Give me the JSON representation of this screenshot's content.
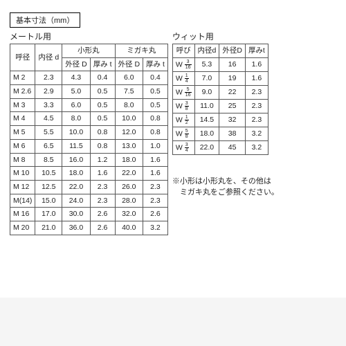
{
  "title": "基本寸法（mm）",
  "left": {
    "section": "メートル用",
    "head": {
      "call": "呼径",
      "id": "内径 d",
      "g1": "小形丸",
      "g2": "ミガキ丸",
      "od": "外径 D",
      "t": "厚み t"
    },
    "rows": [
      {
        "c": "M 2",
        "d": "2.3",
        "d1": "4.3",
        "t1": "0.4",
        "d2": "6.0",
        "t2": "0.4"
      },
      {
        "c": "M 2.6",
        "d": "2.9",
        "d1": "5.0",
        "t1": "0.5",
        "d2": "7.5",
        "t2": "0.5"
      },
      {
        "c": "M 3",
        "d": "3.3",
        "d1": "6.0",
        "t1": "0.5",
        "d2": "8.0",
        "t2": "0.5"
      },
      {
        "c": "M 4",
        "d": "4.5",
        "d1": "8.0",
        "t1": "0.5",
        "d2": "10.0",
        "t2": "0.8"
      },
      {
        "c": "M 5",
        "d": "5.5",
        "d1": "10.0",
        "t1": "0.8",
        "d2": "12.0",
        "t2": "0.8"
      },
      {
        "c": "M 6",
        "d": "6.5",
        "d1": "11.5",
        "t1": "0.8",
        "d2": "13.0",
        "t2": "1.0"
      },
      {
        "c": "M 8",
        "d": "8.5",
        "d1": "16.0",
        "t1": "1.2",
        "d2": "18.0",
        "t2": "1.6"
      },
      {
        "c": "M 10",
        "d": "10.5",
        "d1": "18.0",
        "t1": "1.6",
        "d2": "22.0",
        "t2": "1.6"
      },
      {
        "c": "M 12",
        "d": "12.5",
        "d1": "22.0",
        "t1": "2.3",
        "d2": "26.0",
        "t2": "2.3"
      },
      {
        "c": "M(14)",
        "d": "15.0",
        "d1": "24.0",
        "t1": "2.3",
        "d2": "28.0",
        "t2": "2.3"
      },
      {
        "c": "M 16",
        "d": "17.0",
        "d1": "30.0",
        "t1": "2.6",
        "d2": "32.0",
        "t2": "2.6"
      },
      {
        "c": "M 20",
        "d": "21.0",
        "d1": "36.0",
        "t1": "2.6",
        "d2": "40.0",
        "t2": "3.2"
      }
    ]
  },
  "right": {
    "section": "ウィット用",
    "head": {
      "call": "呼び",
      "id": "内径d",
      "od": "外径D",
      "t": "厚みt"
    },
    "rows": [
      {
        "pre": "W",
        "n": "3",
        "dn": "16",
        "d": "5.3",
        "D": "16",
        "t": "1.6"
      },
      {
        "pre": "W",
        "n": "1",
        "dn": "4",
        "d": "7.0",
        "D": "19",
        "t": "1.6"
      },
      {
        "pre": "W",
        "n": "5",
        "dn": "16",
        "d": "9.0",
        "D": "22",
        "t": "2.3"
      },
      {
        "pre": "W",
        "n": "3",
        "dn": "8",
        "d": "11.0",
        "D": "25",
        "t": "2.3"
      },
      {
        "pre": "W",
        "n": "1",
        "dn": "2",
        "d": "14.5",
        "D": "32",
        "t": "2.3"
      },
      {
        "pre": "W",
        "n": "5",
        "dn": "8",
        "d": "18.0",
        "D": "38",
        "t": "3.2"
      },
      {
        "pre": "W",
        "n": "3",
        "dn": "4",
        "d": "22.0",
        "D": "45",
        "t": "3.2"
      }
    ]
  },
  "note1": "※小形は小形丸を、その他は",
  "note2": "　ミガキ丸をご参照ください。"
}
